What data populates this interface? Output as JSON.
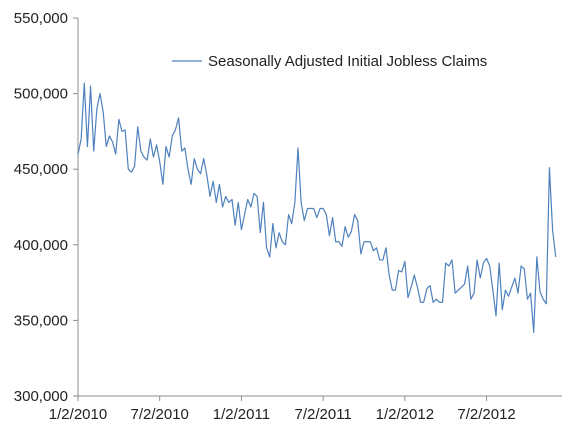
{
  "chart_data": {
    "type": "line",
    "title": "",
    "xlabel": "",
    "ylabel": "",
    "ylim": [
      300000,
      550000
    ],
    "grid": false,
    "legend_position": "top-center",
    "yticks": [
      "550,000",
      "500,000",
      "450,000",
      "400,000",
      "350,000",
      "300,000"
    ],
    "ytick_values": [
      550000,
      500000,
      450000,
      400000,
      350000,
      300000
    ],
    "xticks": [
      "1/2/2010",
      "7/2/2010",
      "1/2/2011",
      "7/2/2011",
      "1/2/2012",
      "7/2/2012"
    ],
    "xtick_positions": [
      0,
      26,
      52,
      78,
      104,
      130
    ],
    "x_start_date": "2010-01-02",
    "x_step_weeks": 1,
    "line_color": "#4f81bd",
    "series": [
      {
        "name": "Seasonally Adjusted Initial Jobless Claims",
        "values": [
          460000,
          470000,
          507000,
          465000,
          505000,
          462000,
          490000,
          500000,
          488000,
          465000,
          472000,
          468000,
          460000,
          483000,
          475000,
          476000,
          450000,
          448000,
          452000,
          478000,
          462000,
          458000,
          456000,
          470000,
          458000,
          466000,
          455000,
          440000,
          465000,
          458000,
          472000,
          476000,
          484000,
          462000,
          464000,
          450000,
          440000,
          457000,
          450000,
          447000,
          457000,
          446000,
          432000,
          442000,
          428000,
          440000,
          425000,
          432000,
          428000,
          430000,
          413000,
          428000,
          410000,
          420000,
          430000,
          425000,
          434000,
          432000,
          408000,
          428000,
          398000,
          392000,
          414000,
          398000,
          408000,
          402000,
          400000,
          420000,
          414000,
          428000,
          464000,
          428000,
          416000,
          424000,
          424000,
          424000,
          418000,
          424000,
          424000,
          420000,
          406000,
          418000,
          402000,
          402000,
          399000,
          412000,
          405000,
          409000,
          420000,
          416000,
          394000,
          402000,
          402000,
          402000,
          396000,
          398000,
          390000,
          390000,
          398000,
          380000,
          370000,
          370000,
          383000,
          382000,
          389000,
          365000,
          372000,
          380000,
          372000,
          362000,
          362000,
          371000,
          373000,
          362000,
          364000,
          362000,
          362000,
          388000,
          386000,
          390000,
          368000,
          370000,
          372000,
          374000,
          386000,
          364000,
          368000,
          390000,
          378000,
          388000,
          391000,
          386000,
          370000,
          353000,
          388000,
          357000,
          370000,
          366000,
          372000,
          378000,
          368000,
          386000,
          384000,
          364000,
          368000,
          342000,
          392000,
          369000,
          364000,
          361000,
          451000,
          410000,
          392000
        ]
      }
    ]
  }
}
